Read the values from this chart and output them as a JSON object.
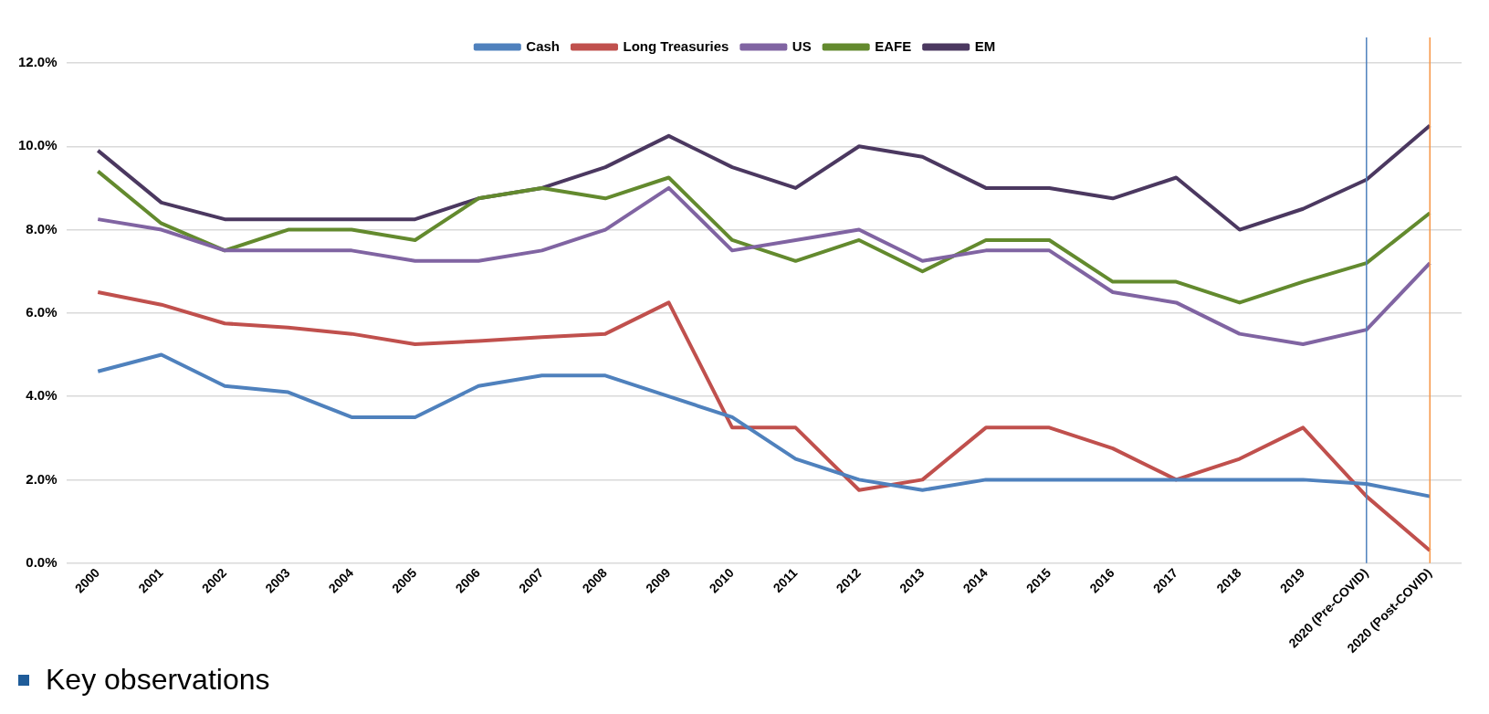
{
  "chart_data": {
    "type": "line",
    "categories": [
      "2000",
      "2001",
      "2002",
      "2003",
      "2004",
      "2005",
      "2006",
      "2007",
      "2008",
      "2009",
      "2010",
      "2011",
      "2012",
      "2013",
      "2014",
      "2015",
      "2016",
      "2017",
      "2018",
      "2019",
      "2020 (Pre-COVID)",
      "2020 (Post-COVID)"
    ],
    "series": [
      {
        "name": "Cash",
        "color": "#4f81bd",
        "values": [
          4.6,
          5.0,
          4.25,
          4.1,
          3.5,
          3.5,
          4.25,
          4.5,
          4.5,
          4.0,
          3.5,
          2.5,
          2.0,
          1.75,
          2.0,
          2.0,
          2.0,
          2.0,
          2.0,
          2.0,
          1.9,
          1.6
        ]
      },
      {
        "name": "Long Treasuries",
        "color": "#c0504d",
        "values": [
          6.5,
          6.2,
          5.75,
          5.65,
          5.5,
          5.25,
          5.33,
          5.42,
          5.5,
          6.25,
          3.25,
          3.25,
          1.75,
          2.0,
          3.25,
          3.25,
          2.75,
          2.0,
          2.5,
          3.25,
          1.6,
          0.3
        ]
      },
      {
        "name": "US",
        "color": "#8064a2",
        "values": [
          8.25,
          8.0,
          7.5,
          7.5,
          7.5,
          7.25,
          7.25,
          7.5,
          8.0,
          9.0,
          7.5,
          7.75,
          8.0,
          7.25,
          7.5,
          7.5,
          6.5,
          6.25,
          5.5,
          5.25,
          5.6,
          7.2
        ]
      },
      {
        "name": "EAFE",
        "color": "#638a2e",
        "values": [
          9.4,
          8.15,
          7.5,
          8.0,
          8.0,
          7.75,
          8.75,
          9.0,
          8.75,
          9.25,
          7.75,
          7.25,
          7.75,
          7.0,
          7.75,
          7.75,
          6.75,
          6.75,
          6.25,
          6.75,
          7.2,
          8.4
        ]
      },
      {
        "name": "EM",
        "color": "#4b3860",
        "values": [
          9.9,
          8.65,
          8.25,
          8.25,
          8.25,
          8.25,
          8.75,
          9.0,
          9.5,
          10.25,
          9.5,
          9.0,
          10.0,
          9.75,
          9.0,
          9.0,
          8.75,
          9.25,
          8.0,
          8.5,
          9.2,
          10.5
        ]
      }
    ],
    "ylim": [
      0,
      12
    ],
    "yticks": [
      {
        "value": 0,
        "label": "0.0%"
      },
      {
        "value": 2,
        "label": "2.0%"
      },
      {
        "value": 4,
        "label": "4.0%"
      },
      {
        "value": 6,
        "label": "6.0%"
      },
      {
        "value": 8,
        "label": "8.0%"
      },
      {
        "value": 10,
        "label": "10.0%"
      },
      {
        "value": 12,
        "label": "12.0%"
      }
    ],
    "ref_lines": [
      {
        "axis": "x",
        "value": "2020 (Pre-COVID)",
        "color": "#4f81bd"
      },
      {
        "axis": "x",
        "value": "2020 (Post-COVID)",
        "color": "#f79646"
      }
    ],
    "grid": "y",
    "legend": "top",
    "marker": "none",
    "line_style": "solid",
    "annotations": [
      "Key observations"
    ]
  }
}
